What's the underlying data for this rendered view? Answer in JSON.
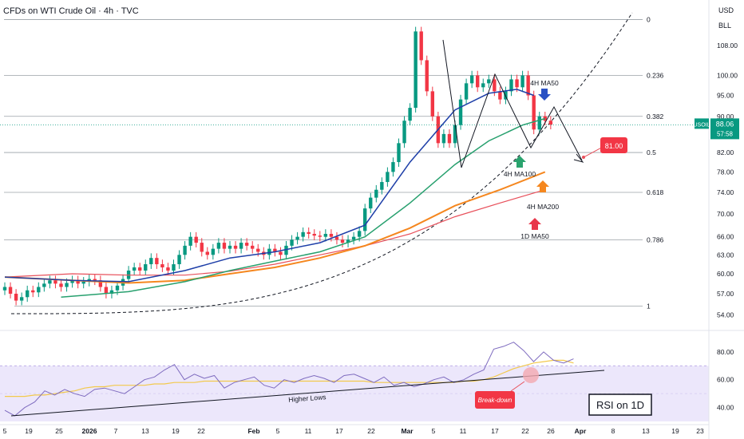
{
  "header": {
    "title": "CFDs on WTI Crude Oil · 4h · TVC"
  },
  "axis": {
    "currency": "USD",
    "unit": "BLL",
    "price_ticks": [
      "108.00",
      "100.00",
      "95.00",
      "90.00",
      "82.00",
      "78.00",
      "74.00",
      "70.00",
      "66.00",
      "63.00",
      "60.00",
      "57.00",
      "54.00"
    ],
    "rsi_ticks": [
      "80.00",
      "60.00",
      "40.00"
    ],
    "date_ticks": [
      "5",
      "19",
      "25",
      "2026",
      "7",
      "13",
      "19",
      "22",
      "Feb",
      "5",
      "11",
      "17",
      "22",
      "Mar",
      "5",
      "11",
      "17",
      "22",
      "26",
      "Apr",
      "8",
      "13",
      "19",
      "23"
    ]
  },
  "price_badge": {
    "symbol": "USOIL",
    "price": "88.06",
    "countdown": "57:58"
  },
  "fib": {
    "levels": [
      "0",
      "0.236",
      "0.382",
      "0.5",
      "0.618",
      "0.786",
      "1"
    ]
  },
  "annotations": {
    "ma50_4h": "4H MA50",
    "ma100_4h": "4H MA100",
    "ma200_4h": "4H MA200",
    "ma50_1d": "1D MA50",
    "target": "81.00",
    "higher_lows": "Higher Lows",
    "breakdown": "Break-down",
    "rsi_box": "RSI on 1D"
  },
  "colors": {
    "candle_up": "#089981",
    "candle_down": "#f23645",
    "ma50_4h": "#1e3fa8",
    "ma100_4h": "#27a06e",
    "ma200_4h": "#f5871f",
    "ma50_1d": "#e8505b",
    "rsi": "#7e6bbf",
    "rsi_ma": "#f2c94c",
    "rsi_band": "#ece7fb"
  },
  "chart_data": {
    "type": "candlestick",
    "symbol": "USOIL",
    "timeframe": "4h",
    "ylim": [
      52.5,
      118
    ],
    "last_price": 88.06,
    "fib_prices": [
      115.5,
      100.0,
      90.0,
      82.0,
      74.0,
      65.5,
      55.2
    ],
    "closes": [
      58.0,
      57.0,
      56.0,
      56.5,
      57.5,
      57.2,
      58.0,
      58.5,
      59.0,
      58.5,
      58.0,
      58.6,
      59.0,
      58.5,
      58.8,
      59.2,
      59.0,
      58.0,
      57.0,
      57.5,
      58.2,
      59.2,
      60.5,
      61.0,
      60.5,
      61.5,
      62.5,
      61.5,
      61.0,
      60.5,
      61.5,
      63.0,
      64.5,
      66.0,
      65.0,
      63.5,
      63.0,
      64.0,
      65.0,
      64.0,
      64.5,
      64.0,
      65.0,
      64.5,
      64.0,
      63.5,
      63.0,
      64.0,
      63.5,
      63.0,
      64.5,
      65.5,
      66.0,
      66.8,
      66.5,
      66.2,
      66.0,
      66.5,
      66.0,
      65.5,
      65.0,
      65.5,
      66.0,
      67.0,
      71.0,
      73.0,
      74.5,
      76.0,
      78.0,
      80.0,
      84.0,
      89.0,
      92.0,
      112.0,
      104.0,
      96.0,
      90.0,
      84.0,
      86.0,
      84.0,
      88.0,
      94.0,
      98.0,
      100.0,
      97.0,
      98.0,
      99.0,
      96.0,
      94.0,
      96.0,
      99.0,
      97.0,
      100.0,
      95.0,
      87.0,
      90.0,
      89.0,
      88.1
    ],
    "ma50_4h": [
      [
        0,
        59.5
      ],
      [
        12,
        59.0
      ],
      [
        22,
        58.8
      ],
      [
        32,
        60.5
      ],
      [
        40,
        62.5
      ],
      [
        48,
        63.5
      ],
      [
        56,
        65.0
      ],
      [
        64,
        68.0
      ],
      [
        72,
        80.0
      ],
      [
        80,
        91.5
      ],
      [
        86,
        95.5
      ],
      [
        91,
        96.5
      ],
      [
        94,
        95.0
      ]
    ],
    "ma100_4h": [
      [
        10,
        56.5
      ],
      [
        22,
        57.3
      ],
      [
        32,
        58.8
      ],
      [
        40,
        60.5
      ],
      [
        48,
        62.0
      ],
      [
        56,
        63.5
      ],
      [
        64,
        66.0
      ],
      [
        72,
        72.0
      ],
      [
        80,
        79.5
      ],
      [
        86,
        84.5
      ],
      [
        92,
        88.0
      ],
      [
        96,
        89.5
      ]
    ],
    "ma200_4h": [
      [
        0,
        59.5
      ],
      [
        12,
        59.0
      ],
      [
        22,
        58.6
      ],
      [
        32,
        59.0
      ],
      [
        40,
        60.0
      ],
      [
        48,
        61.0
      ],
      [
        56,
        62.5
      ],
      [
        64,
        64.5
      ],
      [
        72,
        67.5
      ],
      [
        80,
        71.5
      ],
      [
        88,
        74.5
      ],
      [
        96,
        78.0
      ]
    ],
    "ma50_1d": [
      [
        0,
        59.5
      ],
      [
        12,
        60.0
      ],
      [
        22,
        59.8
      ],
      [
        32,
        59.8
      ],
      [
        40,
        60.4
      ],
      [
        48,
        61.5
      ],
      [
        56,
        63.0
      ],
      [
        64,
        64.5
      ],
      [
        72,
        66.5
      ],
      [
        80,
        69.5
      ],
      [
        88,
        72.0
      ],
      [
        96,
        74.5
      ]
    ],
    "projection_path": [
      [
        96,
        88.1
      ],
      [
        99,
        95.0
      ],
      [
        108,
        83.0
      ]
    ],
    "target_price": 81.0,
    "rsi": {
      "ylim": [
        30,
        92
      ],
      "values": [
        38,
        34,
        40,
        44,
        52,
        49,
        53,
        50,
        48,
        53,
        54,
        52,
        50,
        55,
        60,
        62,
        67,
        71,
        60,
        64,
        61,
        63,
        54,
        58,
        60,
        62,
        56,
        54,
        60,
        58,
        61,
        63,
        61,
        58,
        63,
        64,
        61,
        58,
        62,
        56,
        58,
        55,
        57,
        60,
        62,
        58,
        60,
        64,
        67,
        82,
        84,
        87,
        81,
        73,
        80,
        74,
        72,
        75
      ],
      "ma": [
        48,
        48,
        48,
        49,
        49,
        50,
        51,
        52,
        54,
        55,
        55,
        56,
        56,
        56,
        56,
        57,
        57,
        58,
        58,
        58,
        59,
        59,
        59,
        59,
        59,
        59,
        59,
        59,
        59,
        59,
        59,
        59,
        59,
        59,
        59,
        59,
        59,
        58,
        58,
        58,
        58,
        58,
        58,
        58,
        58,
        58,
        59,
        59,
        60,
        62,
        65,
        68,
        70,
        72,
        73,
        74,
        74,
        72
      ]
    }
  }
}
